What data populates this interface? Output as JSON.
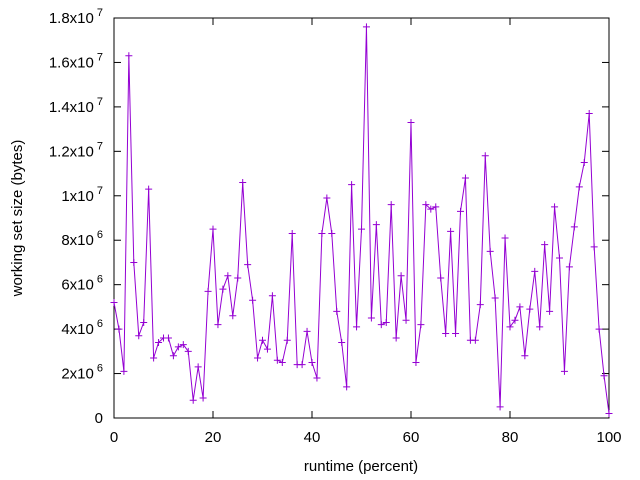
{
  "chart_data": {
    "type": "line",
    "title": "",
    "xlabel": "runtime (percent)",
    "ylabel": "working set size (bytes)",
    "xlim": [
      0,
      100
    ],
    "ylim": [
      0,
      18000000
    ],
    "x_ticks": [
      {
        "value": 0,
        "label": "0"
      },
      {
        "value": 20,
        "label": "20"
      },
      {
        "value": 40,
        "label": "40"
      },
      {
        "value": 60,
        "label": "60"
      },
      {
        "value": 80,
        "label": "80"
      },
      {
        "value": 100,
        "label": "100"
      }
    ],
    "y_ticks": [
      {
        "value": 0,
        "mant": "0",
        "exp": ""
      },
      {
        "value": 2000000,
        "mant": "2x10",
        "exp": "6"
      },
      {
        "value": 4000000,
        "mant": "4x10",
        "exp": "6"
      },
      {
        "value": 6000000,
        "mant": "6x10",
        "exp": "6"
      },
      {
        "value": 8000000,
        "mant": "8x10",
        "exp": "6"
      },
      {
        "value": 10000000,
        "mant": "1x10",
        "exp": "7"
      },
      {
        "value": 12000000,
        "mant": "1.2x10",
        "exp": "7"
      },
      {
        "value": 14000000,
        "mant": "1.4x10",
        "exp": "7"
      },
      {
        "value": 16000000,
        "mant": "1.6x10",
        "exp": "7"
      },
      {
        "value": 18000000,
        "mant": "1.8x10",
        "exp": "7"
      }
    ],
    "grid": false,
    "line_color": "#9400d3",
    "marker": "plus",
    "series": [
      {
        "x": [
          0,
          1,
          2,
          3,
          4,
          5,
          6,
          7,
          8,
          9,
          10,
          11,
          12,
          13,
          14,
          15,
          16,
          17,
          18,
          19,
          20,
          21,
          22,
          23,
          24,
          25,
          26,
          27,
          28,
          29,
          30,
          31,
          32,
          33,
          34,
          35,
          36,
          37,
          38,
          39,
          40,
          41,
          42,
          43,
          44,
          45,
          46,
          47,
          48,
          49,
          50,
          51,
          52,
          53,
          54,
          55,
          56,
          57,
          58,
          59,
          60,
          61,
          62,
          63,
          64,
          65,
          66,
          67,
          68,
          69,
          70,
          71,
          72,
          73,
          74,
          75,
          76,
          77,
          78,
          79,
          80,
          81,
          82,
          83,
          84,
          85,
          86,
          87,
          88,
          89,
          90,
          91,
          92,
          93,
          94,
          95,
          96,
          97,
          98,
          99,
          100
        ],
        "values": [
          5200000,
          4000000,
          2100000,
          16300000,
          7000000,
          3700000,
          4300000,
          10300000,
          2700000,
          3400000,
          3600000,
          3600000,
          2800000,
          3200000,
          3300000,
          3000000,
          800000,
          2300000,
          900000,
          5700000,
          8500000,
          4200000,
          5800000,
          6400000,
          4600000,
          6300000,
          10600000,
          6900000,
          5300000,
          2700000,
          3500000,
          3100000,
          5500000,
          2600000,
          2500000,
          3500000,
          8300000,
          2400000,
          2400000,
          3900000,
          2500000,
          1800000,
          8300000,
          9900000,
          8300000,
          4800000,
          3400000,
          1400000,
          10500000,
          4100000,
          8500000,
          17600000,
          4500000,
          8700000,
          4200000,
          4300000,
          9600000,
          3600000,
          6400000,
          4400000,
          13300000,
          2500000,
          4200000,
          9600000,
          9400000,
          9500000,
          6300000,
          3800000,
          8400000,
          3800000,
          9300000,
          10800000,
          3500000,
          3500000,
          5100000,
          11800000,
          7500000,
          5400000,
          500000,
          8100000,
          4100000,
          4400000,
          5000000,
          2800000,
          4900000,
          6600000,
          4100000,
          7800000,
          4800000,
          9500000,
          7200000,
          2100000,
          6800000,
          8600000,
          10400000,
          11500000,
          13700000,
          7700000,
          4000000,
          1900000,
          200000
        ]
      }
    ]
  }
}
